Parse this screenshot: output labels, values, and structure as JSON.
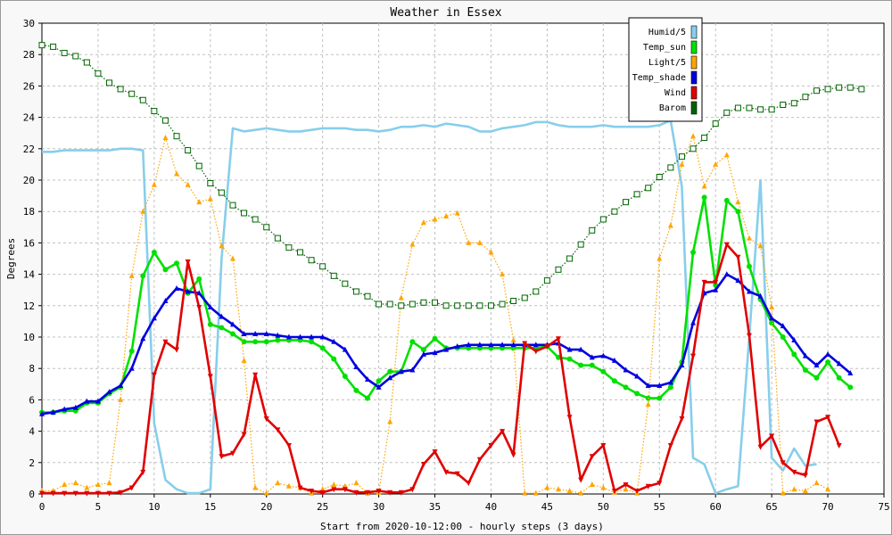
{
  "chart_data": {
    "type": "line",
    "title": "Weather in Essex",
    "xlabel": "Start from 2020-10-12:00 - hourly steps (3 days)",
    "ylabel": "Degrees",
    "xlim": [
      0,
      75
    ],
    "ylim": [
      0,
      30
    ],
    "x_ticks": [
      0,
      5,
      10,
      15,
      20,
      25,
      30,
      35,
      40,
      45,
      50,
      55,
      60,
      65,
      70,
      75
    ],
    "y_ticks": [
      0,
      2,
      4,
      6,
      8,
      10,
      12,
      14,
      16,
      18,
      20,
      22,
      24,
      26,
      28,
      30
    ],
    "grid": true,
    "legend_position": "top-right",
    "series": [
      {
        "name": "Humid/5",
        "color": "#87ceeb",
        "marker": "none",
        "style": "solid",
        "values": [
          21.8,
          21.8,
          21.9,
          21.9,
          21.9,
          21.9,
          21.9,
          22.0,
          22.0,
          21.9,
          4.5,
          0.9,
          0.3,
          0.05,
          0.05,
          0.3,
          15.0,
          23.3,
          23.1,
          23.2,
          23.3,
          23.2,
          23.1,
          23.1,
          23.2,
          23.3,
          23.3,
          23.3,
          23.2,
          23.2,
          23.1,
          23.2,
          23.4,
          23.4,
          23.5,
          23.4,
          23.6,
          23.5,
          23.4,
          23.1,
          23.1,
          23.3,
          23.4,
          23.5,
          23.7,
          23.7,
          23.5,
          23.4,
          23.4,
          23.4,
          23.5,
          23.4,
          23.4,
          23.4,
          23.4,
          23.5,
          23.8,
          19.6,
          2.3,
          1.9,
          0.05,
          0.3,
          0.5,
          10.0,
          20.0,
          2.3,
          1.5,
          2.9,
          1.8,
          1.9
        ]
      },
      {
        "name": "Temp_sun",
        "color": "#00e000",
        "marker": "circle",
        "style": "solid",
        "values": [
          5.2,
          5.2,
          5.3,
          5.3,
          5.8,
          5.8,
          6.4,
          6.8,
          9.1,
          13.9,
          15.4,
          14.3,
          14.7,
          12.8,
          13.7,
          10.8,
          10.6,
          10.2,
          9.7,
          9.7,
          9.7,
          9.8,
          9.8,
          9.8,
          9.7,
          9.3,
          8.6,
          7.5,
          6.6,
          6.1,
          7.2,
          7.8,
          7.8,
          9.7,
          9.2,
          9.9,
          9.3,
          9.3,
          9.3,
          9.3,
          9.3,
          9.3,
          9.3,
          9.3,
          9.3,
          9.4,
          8.7,
          8.6,
          8.2,
          8.2,
          7.8,
          7.2,
          6.8,
          6.4,
          6.1,
          6.1,
          6.8,
          8.4,
          15.4,
          18.9,
          13.3,
          18.7,
          18.0,
          14.5,
          12.4,
          10.9,
          10.0,
          8.9,
          7.9,
          7.4,
          8.4,
          7.4,
          6.8
        ]
      },
      {
        "name": "Light/5",
        "color": "#ffa500",
        "marker": "triangle",
        "style": "dotted",
        "values": [
          0.2,
          0.2,
          0.6,
          0.7,
          0.4,
          0.6,
          0.7,
          6.0,
          13.9,
          18.0,
          19.7,
          22.7,
          20.4,
          19.7,
          18.6,
          18.8,
          15.8,
          15.0,
          8.5,
          0.4,
          0.05,
          0.7,
          0.5,
          0.4,
          0.05,
          0.3,
          0.6,
          0.5,
          0.7,
          0.05,
          0.1,
          4.6,
          12.5,
          15.9,
          17.3,
          17.5,
          17.7,
          17.9,
          16.0,
          16.0,
          15.4,
          14.0,
          9.8,
          0.05,
          0.05,
          0.4,
          0.3,
          0.2,
          0.05,
          0.6,
          0.4,
          0.1,
          0.3,
          0.05,
          5.7,
          15.0,
          17.1,
          21.0,
          22.8,
          19.6,
          21.0,
          21.6,
          18.6,
          16.3,
          15.8,
          11.9,
          0.05,
          0.3,
          0.2,
          0.7,
          0.3
        ]
      },
      {
        "name": "Temp_shade",
        "color": "#0000e0",
        "marker": "triangle",
        "style": "solid",
        "values": [
          5.1,
          5.2,
          5.4,
          5.5,
          5.9,
          5.9,
          6.5,
          6.9,
          8.0,
          9.9,
          11.2,
          12.3,
          13.1,
          12.9,
          12.8,
          11.9,
          11.3,
          10.8,
          10.2,
          10.2,
          10.2,
          10.1,
          10.0,
          10.0,
          10.0,
          10.0,
          9.7,
          9.2,
          8.1,
          7.3,
          6.8,
          7.4,
          7.8,
          7.9,
          8.9,
          9.0,
          9.2,
          9.4,
          9.5,
          9.5,
          9.5,
          9.5,
          9.5,
          9.5,
          9.5,
          9.5,
          9.6,
          9.2,
          9.2,
          8.7,
          8.8,
          8.5,
          7.9,
          7.5,
          6.9,
          6.9,
          7.1,
          8.2,
          10.9,
          12.8,
          13.0,
          14.0,
          13.6,
          12.9,
          12.6,
          11.2,
          10.7,
          9.8,
          8.8,
          8.2,
          8.9,
          8.3,
          7.7
        ]
      },
      {
        "name": "Wind",
        "color": "#e00000",
        "marker": "triangle-down",
        "style": "solid",
        "values": [
          0.05,
          0.05,
          0.05,
          0.05,
          0.05,
          0.05,
          0.05,
          0.1,
          0.4,
          1.4,
          7.6,
          9.7,
          9.2,
          14.8,
          11.9,
          7.5,
          2.4,
          2.6,
          3.8,
          7.6,
          4.8,
          4.1,
          3.1,
          0.4,
          0.2,
          0.1,
          0.3,
          0.3,
          0.1,
          0.1,
          0.2,
          0.1,
          0.1,
          0.3,
          1.9,
          2.7,
          1.4,
          1.3,
          0.7,
          2.2,
          3.1,
          4.0,
          2.5,
          9.6,
          9.1,
          9.4,
          9.9,
          4.9,
          0.9,
          2.4,
          3.1,
          0.2,
          0.6,
          0.2,
          0.5,
          0.7,
          3.1,
          4.8,
          8.8,
          13.5,
          13.5,
          15.9,
          15.1,
          10.1,
          3.0,
          3.7,
          2.0,
          1.4,
          1.2,
          4.6,
          4.9,
          3.1
        ]
      },
      {
        "name": "Barom",
        "color": "#006400",
        "marker": "square",
        "style": "dotted",
        "values": [
          28.6,
          28.5,
          28.1,
          27.9,
          27.5,
          26.8,
          26.2,
          25.8,
          25.5,
          25.1,
          24.4,
          23.8,
          22.8,
          21.9,
          20.9,
          19.8,
          19.2,
          18.4,
          17.9,
          17.5,
          17.0,
          16.3,
          15.7,
          15.4,
          14.9,
          14.5,
          13.9,
          13.4,
          12.9,
          12.6,
          12.1,
          12.1,
          12.0,
          12.1,
          12.2,
          12.2,
          12.0,
          12.0,
          12.0,
          12.0,
          12.0,
          12.1,
          12.3,
          12.5,
          12.9,
          13.6,
          14.3,
          15.0,
          15.9,
          16.8,
          17.5,
          18.0,
          18.6,
          19.1,
          19.5,
          20.2,
          20.8,
          21.5,
          22.0,
          22.7,
          23.6,
          24.3,
          24.6,
          24.6,
          24.5,
          24.5,
          24.8,
          24.9,
          25.3,
          25.7,
          25.8,
          25.9,
          25.9,
          25.8
        ]
      }
    ]
  }
}
